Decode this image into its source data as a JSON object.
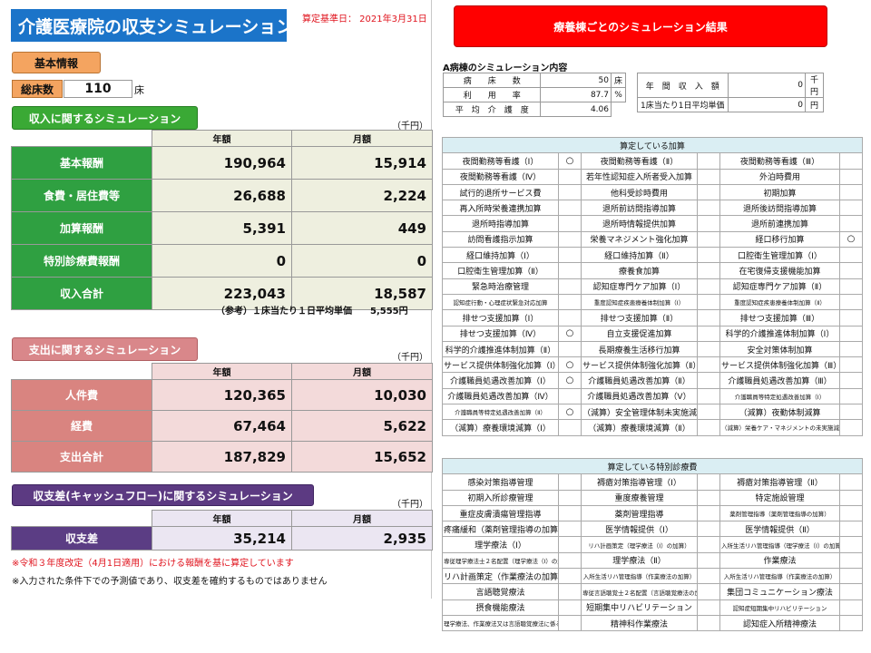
{
  "header": {
    "title": "介護医療院の収支シミュレーション",
    "base_date": "算定基準日： 2021年3月31日"
  },
  "basic_info": {
    "label": "基本情報",
    "bed_label": "総床数",
    "bed_value": "110",
    "bed_unit": "床"
  },
  "income": {
    "header": "収入に関するシミュレーション",
    "unit": "（千円）",
    "col_year": "年額",
    "col_month": "月額",
    "rows": [
      {
        "label": "基本報酬",
        "year": "190,964",
        "month": "15,914"
      },
      {
        "label": "食費・居住費等",
        "year": "26,688",
        "month": "2,224"
      },
      {
        "label": "加算報酬",
        "year": "5,391",
        "month": "449"
      },
      {
        "label": "特別診療費報酬",
        "year": "0",
        "month": "0"
      },
      {
        "label": "収入合計",
        "year": "223,043",
        "month": "18,587"
      }
    ],
    "note": "（参考）１床当たり１日平均単価　　5,555円"
  },
  "expense": {
    "header": "支出に関するシミュレーション",
    "unit": "（千円）",
    "col_year": "年額",
    "col_month": "月額",
    "rows": [
      {
        "label": "人件費",
        "year": "120,365",
        "month": "10,030"
      },
      {
        "label": "経費",
        "year": "67,464",
        "month": "5,622"
      },
      {
        "label": "支出合計",
        "year": "187,829",
        "month": "15,652"
      }
    ]
  },
  "balance": {
    "header": "収支差(キャッシュフロー)に関するシミュレーション",
    "unit": "（千円）",
    "col_year": "年額",
    "col_month": "月額",
    "rows": [
      {
        "label": "収支差",
        "year": "35,214",
        "month": "2,935"
      }
    ]
  },
  "footnotes": {
    "red": "※令和３年度改定（4月1日適用）における報酬を基に算定しています",
    "black": "※入力された条件下での予測値であり、収支差を確約するものではありません"
  },
  "results": {
    "button": "療養棟ごとのシミュレーション結果",
    "ward_title": "A病棟のシミュレーション内容",
    "left": [
      {
        "label": "病　　床　　数",
        "value": "50",
        "unit": "床"
      },
      {
        "label": "利　　用　　率",
        "value": "87.7",
        "unit": "%"
      },
      {
        "label": "平　均　介　護　度",
        "value": "4.06",
        "unit": ""
      }
    ],
    "right": [
      {
        "label": "年　間　収　入　額",
        "value": "0",
        "unit": "千円"
      },
      {
        "label": "1床当たり1日平均単価",
        "value": "0",
        "unit": "円"
      }
    ]
  },
  "addons": {
    "caption": "算定している加算",
    "rows": [
      [
        [
          "夜間勤務等看護（Ⅰ）",
          "○"
        ],
        [
          "夜間勤務等看護（Ⅱ）",
          ""
        ],
        [
          "夜間勤務等看護（Ⅲ）",
          ""
        ]
      ],
      [
        [
          "夜間勤務等看護（Ⅳ）",
          ""
        ],
        [
          "若年性認知症入所者受入加算",
          ""
        ],
        [
          "外泊時費用",
          ""
        ]
      ],
      [
        [
          "試行的退所サービス費",
          ""
        ],
        [
          "他科受診時費用",
          ""
        ],
        [
          "初期加算",
          ""
        ]
      ],
      [
        [
          "再入所時栄養連携加算",
          ""
        ],
        [
          "退所前訪問指導加算",
          ""
        ],
        [
          "退所後訪問指導加算",
          ""
        ]
      ],
      [
        [
          "退所時指導加算",
          ""
        ],
        [
          "退所時情報提供加算",
          ""
        ],
        [
          "退所前連携加算",
          ""
        ]
      ],
      [
        [
          "訪問看護指示加算",
          ""
        ],
        [
          "栄養マネジメント強化加算",
          ""
        ],
        [
          "経口移行加算",
          "○"
        ]
      ],
      [
        [
          "経口維持加算（Ⅰ）",
          ""
        ],
        [
          "経口維持加算（Ⅱ）",
          ""
        ],
        [
          "口腔衛生管理加算（Ⅰ）",
          ""
        ]
      ],
      [
        [
          "口腔衛生管理加算（Ⅱ）",
          ""
        ],
        [
          "療養食加算",
          ""
        ],
        [
          "在宅復帰支援機能加算",
          ""
        ]
      ],
      [
        [
          "緊急時治療管理",
          ""
        ],
        [
          "認知症専門ケア加算（Ⅰ）",
          ""
        ],
        [
          "認知症専門ケア加算（Ⅱ）",
          ""
        ]
      ],
      [
        [
          "認知症行動・心理症状緊急対応加算",
          ""
        ],
        [
          "重度認知症疾患療養体制加算（Ⅰ）",
          ""
        ],
        [
          "重度認知症疾患療養体制加算（Ⅱ）",
          ""
        ]
      ],
      [
        [
          "排せつ支援加算（Ⅰ）",
          ""
        ],
        [
          "排せつ支援加算（Ⅱ）",
          ""
        ],
        [
          "排せつ支援加算（Ⅲ）",
          ""
        ]
      ],
      [
        [
          "排せつ支援加算（Ⅳ）",
          "○"
        ],
        [
          "自立支援促進加算",
          ""
        ],
        [
          "科学的介護推進体制加算（Ⅰ）",
          ""
        ]
      ],
      [
        [
          "科学的介護推進体制加算（Ⅱ）",
          ""
        ],
        [
          "長期療養生活移行加算",
          ""
        ],
        [
          "安全対策体制加算",
          ""
        ]
      ],
      [
        [
          "サービス提供体制強化加算（Ⅰ）",
          "○"
        ],
        [
          "サービス提供体制強化加算（Ⅱ）",
          ""
        ],
        [
          "サービス提供体制強化加算（Ⅲ）",
          ""
        ]
      ],
      [
        [
          "介護職員処遇改善加算（Ⅰ）",
          "○"
        ],
        [
          "介護職員処遇改善加算（Ⅱ）",
          ""
        ],
        [
          "介護職員処遇改善加算（Ⅲ）",
          ""
        ]
      ],
      [
        [
          "介護職員処遇改善加算（Ⅳ）",
          ""
        ],
        [
          "介護職員処遇改善加算（Ⅴ）",
          ""
        ],
        [
          "介護職員等特定処遇改善加算（Ⅰ）",
          ""
        ]
      ],
      [
        [
          "介護職員等特定処遇改善加算（Ⅱ）",
          "○"
        ],
        [
          "（減算）安全管理体制未実施減算",
          ""
        ],
        [
          "（減算）夜勤体制減算",
          ""
        ]
      ],
      [
        [
          "（減算）療養環境減算（Ⅰ）",
          ""
        ],
        [
          "（減算）療養環境減算（Ⅱ）",
          ""
        ],
        [
          "（減算）栄養ケア・マネジメントの未実施減算",
          ""
        ]
      ]
    ]
  },
  "special": {
    "caption": "算定している特別診療費",
    "rows": [
      [
        [
          "感染対策指導管理",
          ""
        ],
        [
          "褥瘡対策指導管理（Ⅰ）",
          ""
        ],
        [
          "褥瘡対策指導管理（Ⅱ）",
          ""
        ]
      ],
      [
        [
          "初期入所診療管理",
          ""
        ],
        [
          "重度療養管理",
          ""
        ],
        [
          "特定施設管理",
          ""
        ]
      ],
      [
        [
          "重症皮膚潰瘍管理指導",
          ""
        ],
        [
          "薬剤管理指導",
          ""
        ],
        [
          "薬剤管理指導（薬剤管理指導の加算）",
          ""
        ]
      ],
      [
        [
          "疼痛緩和（薬剤管理指導の加算）",
          ""
        ],
        [
          "医学情報提供（Ⅰ）",
          ""
        ],
        [
          "医学情報提供（Ⅱ）",
          ""
        ]
      ],
      [
        [
          "理学療法（Ⅰ）",
          ""
        ],
        [
          "リハ計画策定（理学療法（Ⅰ）の加算）",
          ""
        ],
        [
          "入所生活リハ管理指導（理学療法（Ⅰ）の加算）",
          ""
        ]
      ],
      [
        [
          "専従理学療法士２名配置（理学療法（Ⅰ）の加算）",
          ""
        ],
        [
          "理学療法（Ⅱ）",
          ""
        ],
        [
          "作業療法",
          ""
        ]
      ],
      [
        [
          "リハ計画策定（作業療法の加算）",
          ""
        ],
        [
          "入所生活リハ管理指導（作業療法の加算）",
          ""
        ],
        [
          "入所生活リハ管理指導（作業療法の加算）",
          ""
        ]
      ],
      [
        [
          "言語聴覚療法",
          ""
        ],
        [
          "専従言語聴覚士２名配置（言語聴覚療法の加算）",
          ""
        ],
        [
          "集団コミュニケーション療法",
          ""
        ]
      ],
      [
        [
          "摂食機能療法",
          ""
        ],
        [
          "短期集中リハビリテーション",
          ""
        ],
        [
          "認知症短期集中リハビリテーション",
          ""
        ]
      ],
      [
        [
          "理学療法、作業療法又は言語聴覚療法に係る加算",
          ""
        ],
        [
          "精神科作業療法",
          ""
        ],
        [
          "認知症入所精神療法",
          ""
        ]
      ]
    ]
  }
}
